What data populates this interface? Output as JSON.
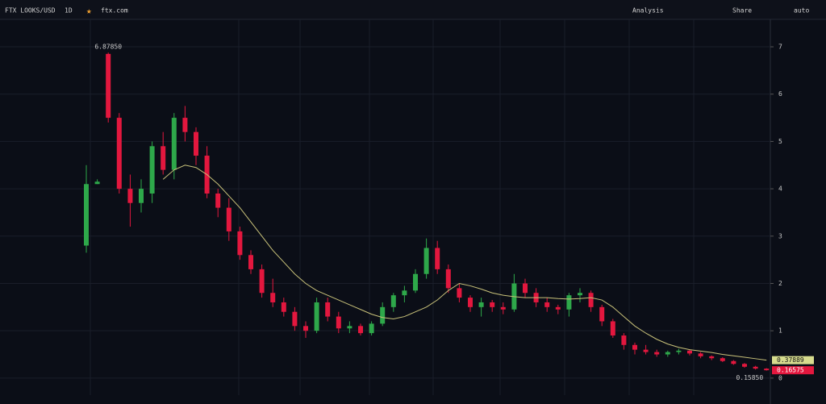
{
  "toolbar": {
    "symbol": "FTX LOOKS/USD",
    "interval": "1D",
    "exchange": "ftx.com",
    "analysis": "Analysis",
    "share": "Share",
    "scale": "auto"
  },
  "chart_data": {
    "type": "candlestick",
    "ylim": [
      -0.36,
      7.58
    ],
    "yticks": [
      0,
      1,
      2,
      3,
      4,
      5,
      6,
      7
    ],
    "grid": true,
    "up_color": "#2ea84a",
    "down_color": "#e3173e",
    "ma_color": "#c9c27a",
    "open": [
      2.8,
      4.1,
      6.85,
      5.5,
      4.0,
      3.7,
      3.9,
      4.9,
      4.4,
      5.5,
      5.2,
      4.7,
      3.9,
      3.6,
      3.1,
      2.6,
      2.3,
      1.8,
      1.6,
      1.4,
      1.1,
      1.0,
      1.6,
      1.3,
      1.05,
      1.1,
      0.95,
      1.15,
      1.5,
      1.75,
      1.85,
      2.2,
      2.75,
      2.3,
      1.9,
      1.7,
      1.5,
      1.6,
      1.5,
      1.45,
      2.0,
      1.8,
      1.6,
      1.5,
      1.45,
      1.75,
      1.8,
      1.5,
      1.2,
      0.9,
      0.7,
      0.6,
      0.55,
      0.5,
      0.55,
      0.58,
      0.52,
      0.46,
      0.42,
      0.36,
      0.3,
      0.24,
      0.2
    ],
    "high": [
      4.5,
      4.2,
      6.8785,
      5.6,
      4.3,
      4.2,
      5.0,
      5.2,
      5.6,
      5.75,
      5.3,
      4.9,
      4.0,
      3.8,
      3.2,
      2.7,
      2.4,
      2.1,
      1.7,
      1.5,
      1.2,
      1.7,
      1.7,
      1.4,
      1.2,
      1.15,
      1.2,
      1.6,
      1.8,
      1.95,
      2.3,
      2.95,
      2.9,
      2.4,
      2.0,
      1.75,
      1.7,
      1.65,
      1.6,
      2.2,
      2.1,
      1.9,
      1.7,
      1.55,
      1.8,
      1.9,
      1.85,
      1.55,
      1.25,
      0.95,
      0.75,
      0.7,
      0.6,
      0.58,
      0.62,
      0.6,
      0.55,
      0.48,
      0.44,
      0.38,
      0.32,
      0.26,
      0.21
    ],
    "low": [
      2.65,
      4.1,
      5.4,
      3.9,
      3.2,
      3.5,
      3.7,
      4.3,
      4.2,
      5.0,
      4.5,
      3.8,
      3.4,
      2.9,
      2.5,
      2.2,
      1.7,
      1.5,
      1.3,
      1.0,
      0.85,
      0.95,
      1.2,
      0.95,
      0.95,
      0.9,
      0.9,
      1.1,
      1.4,
      1.6,
      1.8,
      2.1,
      2.2,
      1.8,
      1.6,
      1.4,
      1.3,
      1.4,
      1.35,
      1.4,
      1.7,
      1.5,
      1.4,
      1.35,
      1.3,
      1.6,
      1.4,
      1.1,
      0.85,
      0.6,
      0.5,
      0.5,
      0.45,
      0.45,
      0.5,
      0.48,
      0.42,
      0.38,
      0.34,
      0.28,
      0.22,
      0.18,
      0.1585
    ],
    "close": [
      4.1,
      4.15,
      5.5,
      4.0,
      3.7,
      4.0,
      4.9,
      4.4,
      5.5,
      5.2,
      4.7,
      3.9,
      3.6,
      3.1,
      2.6,
      2.3,
      1.8,
      1.6,
      1.4,
      1.1,
      1.0,
      1.6,
      1.3,
      1.05,
      1.1,
      0.95,
      1.15,
      1.5,
      1.75,
      1.85,
      2.2,
      2.75,
      2.3,
      1.9,
      1.7,
      1.5,
      1.6,
      1.5,
      1.45,
      2.0,
      1.8,
      1.6,
      1.5,
      1.45,
      1.75,
      1.8,
      1.5,
      1.2,
      0.9,
      0.7,
      0.6,
      0.55,
      0.5,
      0.55,
      0.58,
      0.52,
      0.46,
      0.42,
      0.36,
      0.3,
      0.24,
      0.2,
      0.16575
    ],
    "ma": [
      null,
      null,
      null,
      null,
      null,
      null,
      null,
      4.2,
      4.4,
      4.5,
      4.45,
      4.3,
      4.1,
      3.85,
      3.6,
      3.3,
      3.0,
      2.7,
      2.45,
      2.2,
      2.0,
      1.85,
      1.75,
      1.65,
      1.55,
      1.45,
      1.35,
      1.28,
      1.25,
      1.3,
      1.4,
      1.5,
      1.65,
      1.85,
      2.0,
      1.95,
      1.88,
      1.8,
      1.75,
      1.72,
      1.7,
      1.7,
      1.7,
      1.68,
      1.67,
      1.68,
      1.7,
      1.65,
      1.5,
      1.3,
      1.1,
      0.95,
      0.82,
      0.72,
      0.65,
      0.6,
      0.57,
      0.54,
      0.5,
      0.47,
      0.44,
      0.41,
      0.37889
    ],
    "annotations": [
      {
        "value": 6.8785,
        "label": "6.87850"
      },
      {
        "value": 0.1585,
        "label": "0.15850"
      }
    ]
  }
}
